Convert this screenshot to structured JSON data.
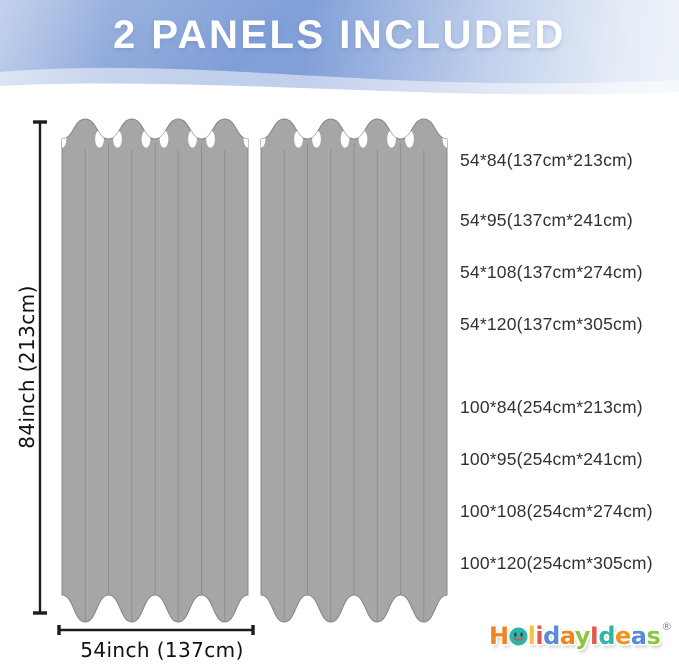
{
  "banner": {
    "title": "2 PANELS INCLUDED",
    "bg_color_left": "#7d9cd6",
    "bg_color_right": "#edf2fa",
    "text_color": "#ffffff"
  },
  "diagram": {
    "panels_count": 2,
    "panel_color": "#a6a6a6",
    "panel_edge_color": "#858585",
    "fold_line_color": "#8f8f8f",
    "grommet_color": "#ffffff",
    "dimension_line_color": "#1c1c1c",
    "height_label": "84inch (213cm)",
    "width_label": "54inch (137cm)"
  },
  "sizes": {
    "items": [
      "54*84(137cm*213cm)",
      "54*95(137cm*241cm)",
      "54*108(137cm*274cm)",
      "54*120(137cm*305cm)",
      "100*84(254cm*213cm)",
      "100*95(254cm*241cm)",
      "100*108(254cm*274cm)",
      "100*120(254cm*305cm)"
    ]
  },
  "logo": {
    "name": "HolidayIdeas",
    "registered_mark": "®",
    "letters": [
      {
        "ch": "H",
        "color": "#EF8522"
      },
      {
        "ch": "o",
        "color": "#2EB6A5",
        "smiley": true
      },
      {
        "ch": "l",
        "color": "#F6C043"
      },
      {
        "ch": "i",
        "color": "#E4574E"
      },
      {
        "ch": "d",
        "color": "#5A8BD7"
      },
      {
        "ch": "a",
        "color": "#EF8522"
      },
      {
        "ch": "y",
        "color": "#8CC63E"
      },
      {
        "ch": "I",
        "color": "#E4574E"
      },
      {
        "ch": "d",
        "color": "#2EB6A5"
      },
      {
        "ch": "e",
        "color": "#F0921E"
      },
      {
        "ch": "a",
        "color": "#5A8BD7"
      },
      {
        "ch": "s",
        "color": "#8CC63E"
      }
    ],
    "smiley": {
      "face_color": "#2EB6A5",
      "eye_color": "#27426B",
      "mouth_color": "#D65050"
    }
  }
}
